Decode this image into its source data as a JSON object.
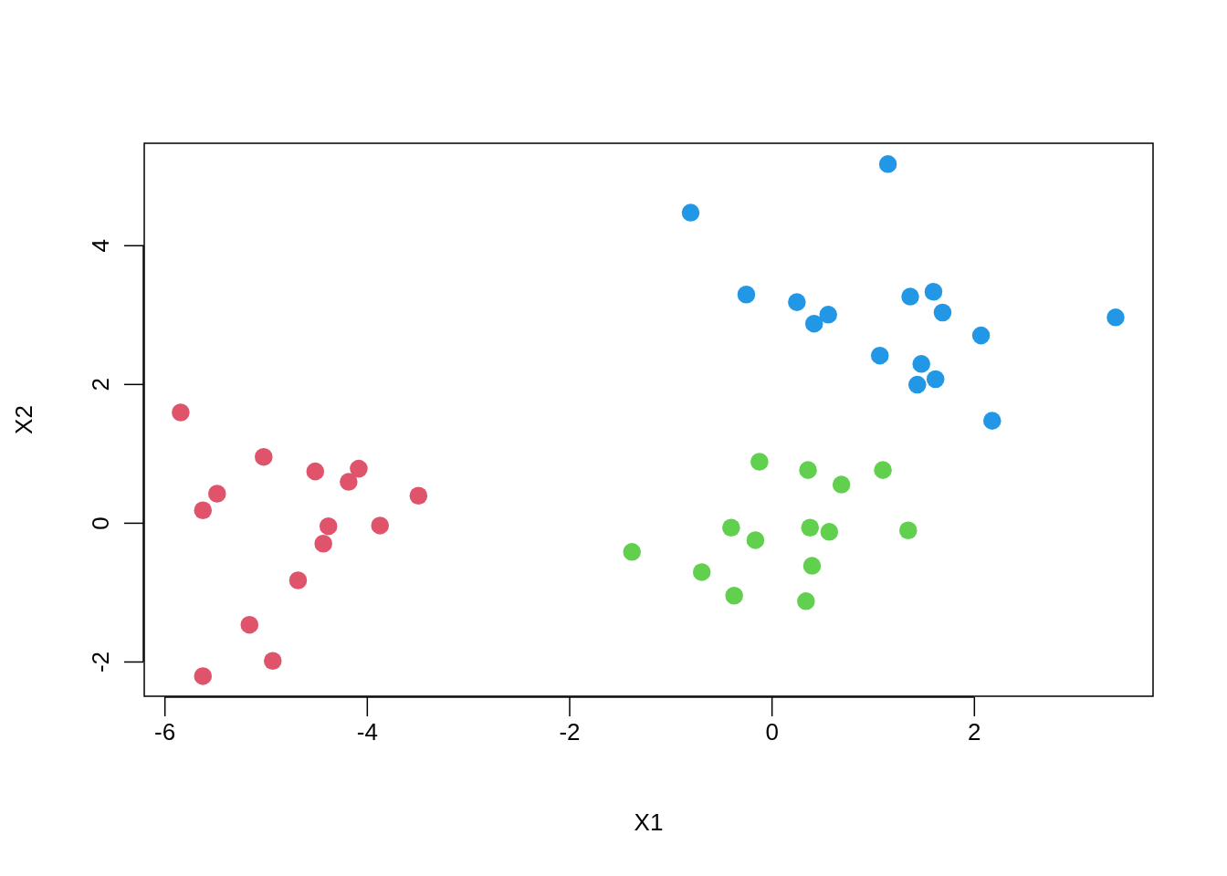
{
  "chart_data": {
    "type": "scatter",
    "xlabel": "X1",
    "ylabel": "X2",
    "xlim": [
      -6.2,
      3.77
    ],
    "ylim": [
      -2.5,
      5.47
    ],
    "xticks": [
      -6,
      -4,
      -2,
      0,
      2
    ],
    "yticks": [
      -2,
      0,
      2,
      4
    ],
    "grid": false,
    "legend": false,
    "marker": "circle",
    "series": [
      {
        "color": "#df536b",
        "x": [
          -5.84,
          -5.02,
          -5.48,
          -5.62,
          -4.51,
          -4.08,
          -4.18,
          -3.49,
          -4.38,
          -3.87,
          -4.43,
          -4.68,
          -5.16,
          -4.93,
          -5.62
        ],
        "values": [
          1.59,
          0.95,
          0.42,
          0.18,
          0.74,
          0.78,
          0.59,
          0.39,
          -0.05,
          -0.04,
          -0.3,
          -0.83,
          -1.47,
          -1.99,
          -2.21
        ]
      },
      {
        "color": "#61d04f",
        "x": [
          -0.12,
          0.36,
          0.69,
          1.1,
          -0.4,
          0.38,
          0.57,
          1.35,
          -0.16,
          -1.38,
          -0.69,
          0.4,
          -0.37,
          0.34
        ],
        "values": [
          0.88,
          0.76,
          0.55,
          0.76,
          -0.07,
          -0.07,
          -0.13,
          -0.11,
          -0.25,
          -0.42,
          -0.71,
          -0.62,
          -1.05,
          -1.13
        ]
      },
      {
        "color": "#2297e6",
        "x": [
          1.15,
          -0.8,
          -0.25,
          0.25,
          0.56,
          0.42,
          1.37,
          1.6,
          1.69,
          2.07,
          3.4,
          1.07,
          1.48,
          1.44,
          1.62,
          2.18
        ],
        "values": [
          5.17,
          4.47,
          3.29,
          3.18,
          3.0,
          2.87,
          3.26,
          3.33,
          3.03,
          2.7,
          2.96,
          2.41,
          2.29,
          1.99,
          2.07,
          1.47
        ]
      }
    ]
  }
}
